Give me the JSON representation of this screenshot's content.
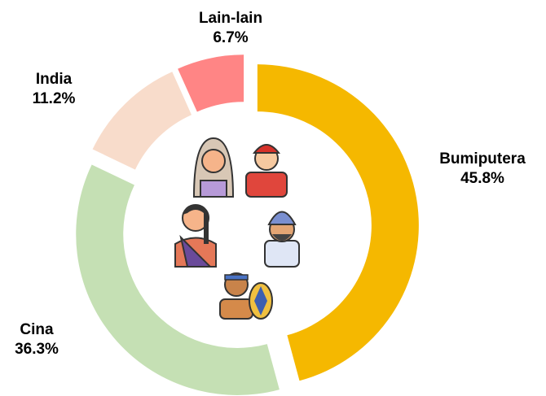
{
  "chart_data": {
    "type": "donut",
    "categories": [
      "Bumiputera",
      "Cina",
      "India",
      "Lain-lain"
    ],
    "values": [
      45.8,
      36.3,
      11.2,
      6.7
    ],
    "value_labels": [
      "45.8%",
      "36.3%",
      "11.2%",
      "6.7%"
    ],
    "colors": [
      "#f5b800",
      "#c5e0b4",
      "#f8dccb",
      "#ff8585"
    ]
  }
}
